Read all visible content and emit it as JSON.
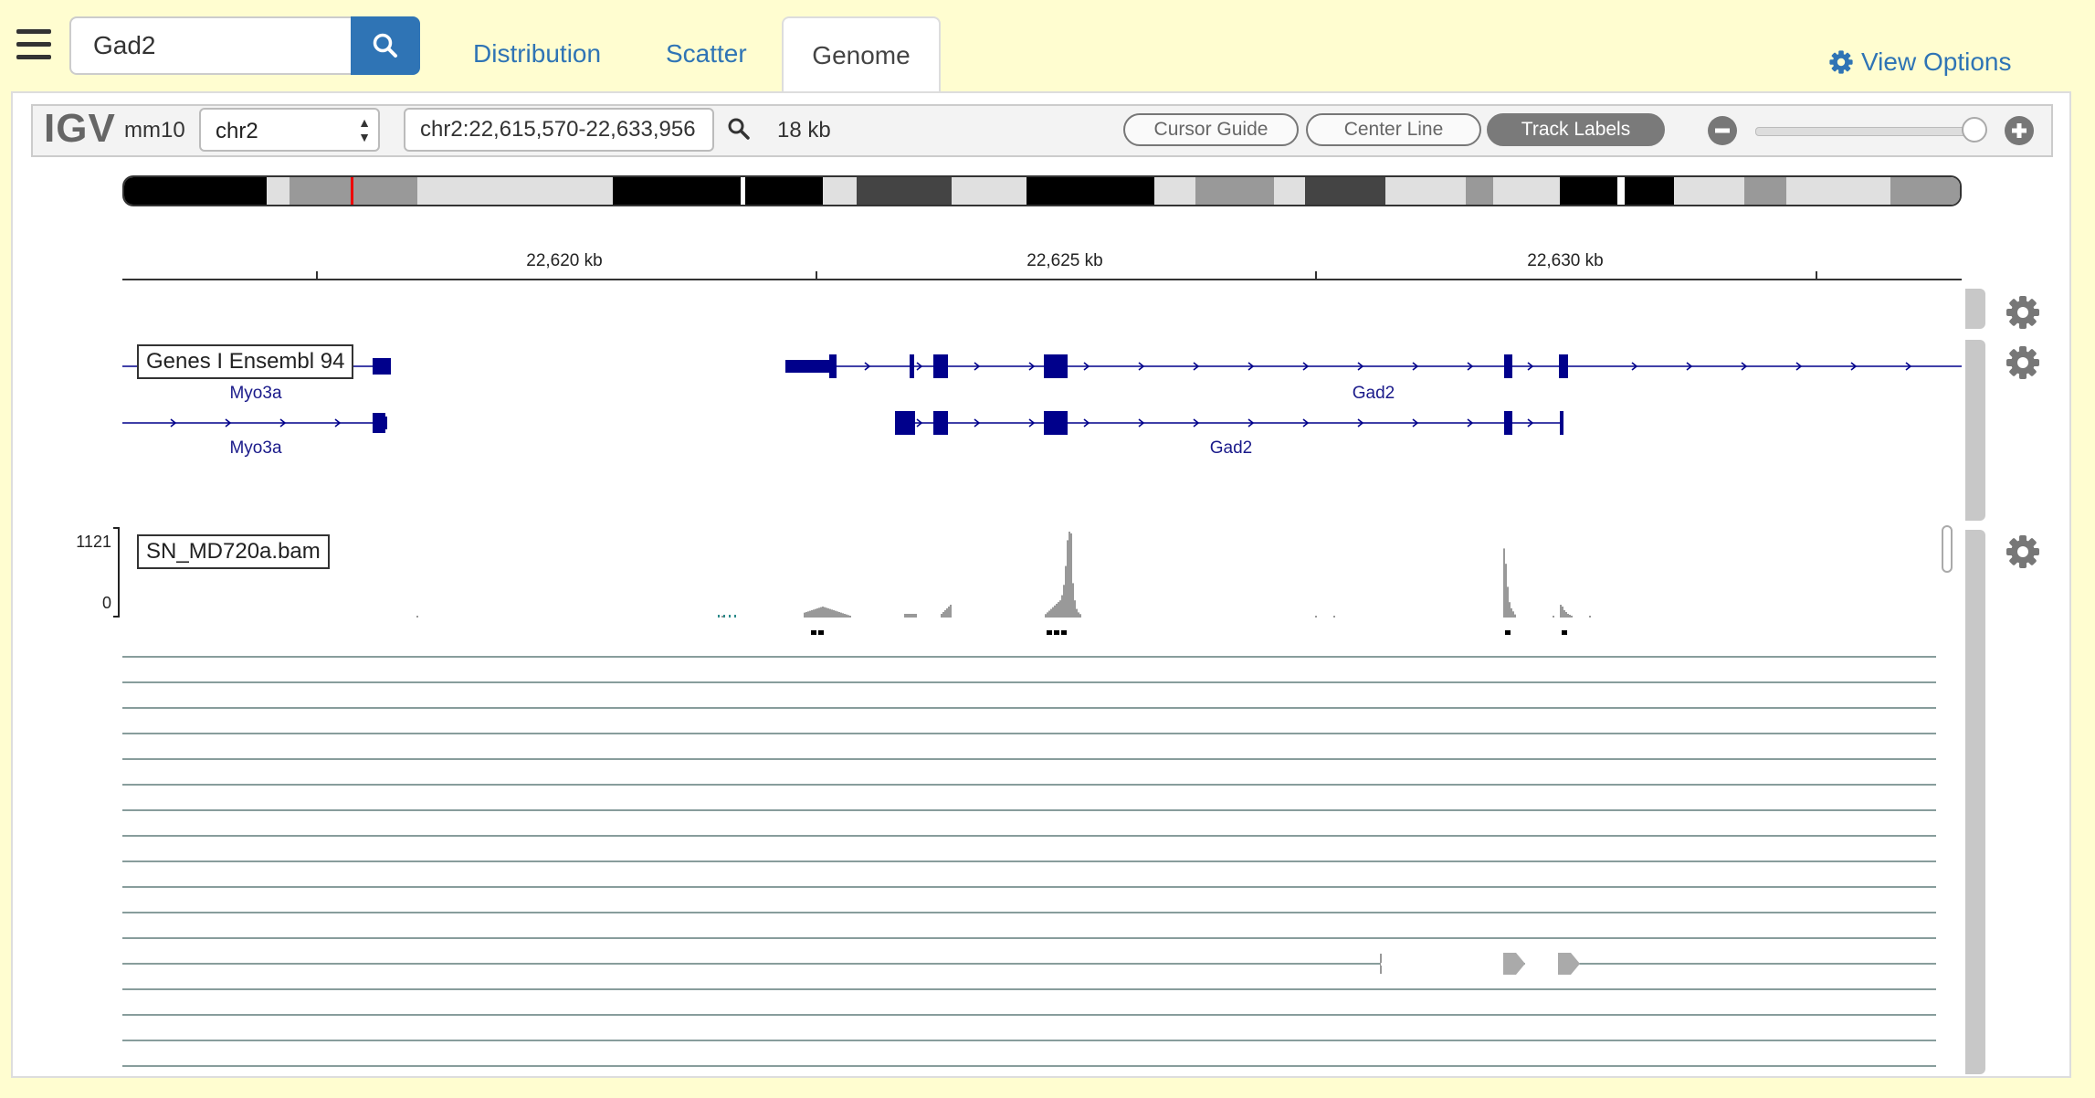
{
  "nav": {
    "search_value": "Gad2",
    "search_placeholder": "",
    "tabs": [
      {
        "label": "Distribution"
      },
      {
        "label": "Scatter"
      },
      {
        "label": "Genome"
      }
    ],
    "view_options_label": "View Options"
  },
  "igv": {
    "logo": "IGV",
    "genome": "mm10",
    "chromosome": "chr2",
    "locus": "chr2:22,615,570-22,633,956",
    "window_size": "18 kb",
    "buttons": {
      "cursor_guide": "Cursor Guide",
      "center_line": "Center Line",
      "track_labels": "Track Labels"
    },
    "zoom_level": 1.0,
    "ruler": {
      "ticks": [
        {
          "label": "22,620 kb"
        },
        {
          "label": "22,625 kb"
        },
        {
          "label": "22,630 kb"
        }
      ]
    },
    "tracks": {
      "genes": {
        "label": "Genes I Ensembl 94",
        "genes": [
          "Myo3a",
          "Gad2",
          "Myo3a",
          "Gad2"
        ]
      },
      "bam": {
        "label": "SN_MD720a.bam",
        "axis_max": "1121",
        "axis_min": "0"
      }
    }
  },
  "colors": {
    "background": "#fffdd0",
    "accent": "#2f74b5",
    "gene": "#00008b",
    "coverage": "#999999",
    "read_line": "#607d7b"
  }
}
